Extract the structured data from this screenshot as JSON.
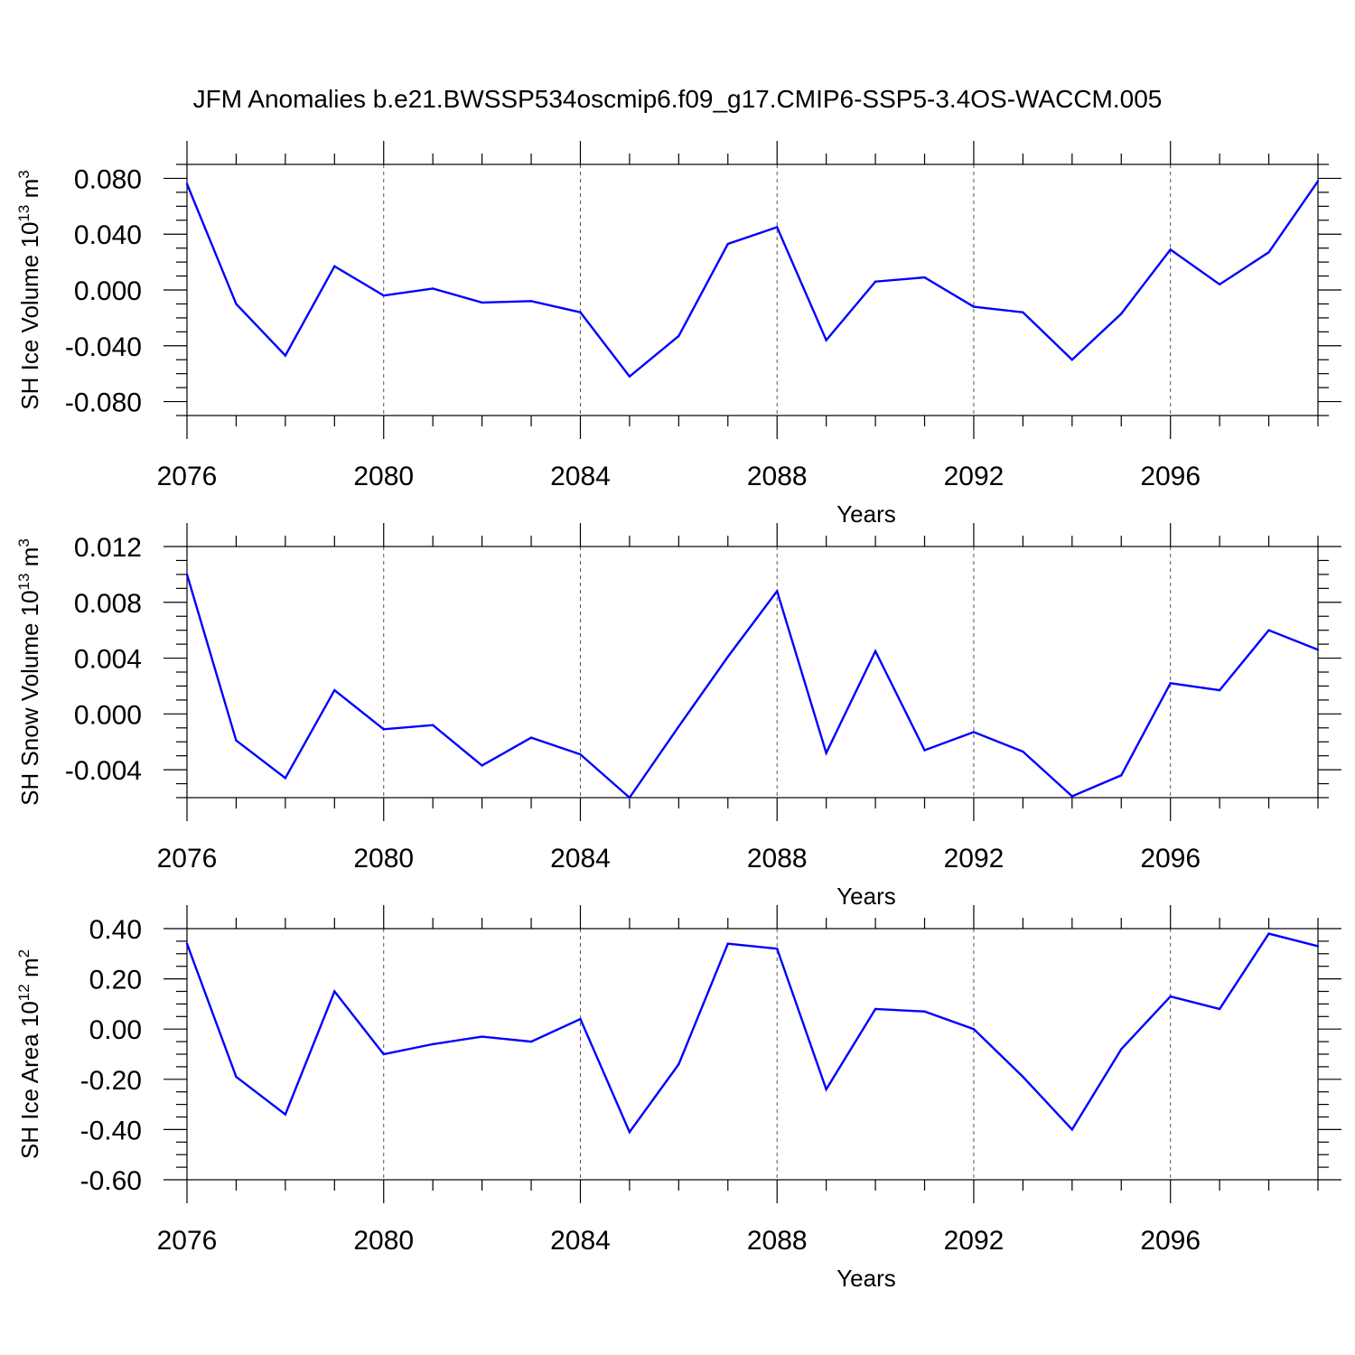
{
  "title": "JFM Anomalies b.e21.BWSSP534oscmip6.f09_g17.CMIP6-SSP5-3.4OS-WACCM.005",
  "chart_data": [
    {
      "type": "line",
      "xlabel": "Years",
      "ylabel": "SH Ice Volume 10",
      "ylabel_exp": "13",
      "ylabel_unit": " m",
      "ylabel_unit_exp": "3",
      "xlim": [
        2076,
        2099
      ],
      "ylim": [
        -0.09,
        0.09
      ],
      "xticks": [
        2076,
        2080,
        2084,
        2088,
        2092,
        2096
      ],
      "xtick_labels": [
        "2076",
        "2080",
        "2084",
        "2088",
        "2092",
        "2096"
      ],
      "yticks": [
        -0.08,
        -0.04,
        0.0,
        0.04,
        0.08
      ],
      "ytick_labels": [
        "-0.080",
        "-0.040",
        "0.000",
        "0.040",
        "0.080"
      ],
      "yminor_step": 0.01,
      "series": [
        {
          "name": "SH Ice Volume",
          "color": "#0000ff",
          "x": [
            2076,
            2077,
            2078,
            2079,
            2080,
            2081,
            2082,
            2083,
            2084,
            2085,
            2086,
            2087,
            2088,
            2089,
            2090,
            2091,
            2092,
            2093,
            2094,
            2095,
            2096,
            2097,
            2098,
            2099
          ],
          "y": [
            0.076,
            -0.01,
            -0.047,
            0.017,
            -0.004,
            0.001,
            -0.009,
            -0.008,
            -0.016,
            -0.062,
            -0.033,
            0.033,
            0.045,
            -0.036,
            0.006,
            0.009,
            -0.012,
            -0.016,
            -0.05,
            -0.017,
            0.029,
            0.004,
            0.027,
            0.078
          ]
        }
      ]
    },
    {
      "type": "line",
      "xlabel": "Years",
      "ylabel": "SH Snow Volume 10",
      "ylabel_exp": "13",
      "ylabel_unit": " m",
      "ylabel_unit_exp": "3",
      "xlim": [
        2076,
        2099
      ],
      "ylim": [
        -0.006,
        0.012
      ],
      "xticks": [
        2076,
        2080,
        2084,
        2088,
        2092,
        2096
      ],
      "xtick_labels": [
        "2076",
        "2080",
        "2084",
        "2088",
        "2092",
        "2096"
      ],
      "yticks": [
        -0.004,
        0.0,
        0.004,
        0.008,
        0.012
      ],
      "ytick_labels": [
        "-0.004",
        "0.000",
        "0.004",
        "0.008",
        "0.012"
      ],
      "yminor_step": 0.001,
      "series": [
        {
          "name": "SH Snow Volume",
          "color": "#0000ff",
          "x": [
            2076,
            2077,
            2078,
            2079,
            2080,
            2081,
            2082,
            2083,
            2084,
            2085,
            2086,
            2087,
            2088,
            2089,
            2090,
            2091,
            2092,
            2093,
            2094,
            2095,
            2096,
            2097,
            2098,
            2099
          ],
          "y": [
            0.01,
            -0.0019,
            -0.0046,
            0.0017,
            -0.0011,
            -0.0008,
            -0.0037,
            -0.0017,
            -0.0029,
            -0.006,
            -0.0009,
            0.0041,
            0.0088,
            -0.0028,
            0.0045,
            -0.0026,
            -0.0013,
            -0.0027,
            -0.0059,
            -0.0044,
            0.0022,
            0.0017,
            0.006,
            0.0046
          ]
        }
      ]
    },
    {
      "type": "line",
      "xlabel": "Years",
      "ylabel": "SH Ice Area 10",
      "ylabel_exp": "12",
      "ylabel_unit": " m",
      "ylabel_unit_exp": "2",
      "xlim": [
        2076,
        2099
      ],
      "ylim": [
        -0.6,
        0.4
      ],
      "xticks": [
        2076,
        2080,
        2084,
        2088,
        2092,
        2096
      ],
      "xtick_labels": [
        "2076",
        "2080",
        "2084",
        "2088",
        "2092",
        "2096"
      ],
      "yticks": [
        -0.6,
        -0.4,
        -0.2,
        0.0,
        0.2,
        0.4
      ],
      "ytick_labels": [
        "-0.60",
        "-0.40",
        "-0.20",
        "0.00",
        "0.20",
        "0.40"
      ],
      "yminor_step": 0.05,
      "series": [
        {
          "name": "SH Ice Area",
          "color": "#0000ff",
          "x": [
            2076,
            2077,
            2078,
            2079,
            2080,
            2081,
            2082,
            2083,
            2084,
            2085,
            2086,
            2087,
            2088,
            2089,
            2090,
            2091,
            2092,
            2093,
            2094,
            2095,
            2096,
            2097,
            2098,
            2099
          ],
          "y": [
            0.34,
            -0.19,
            -0.34,
            0.15,
            -0.1,
            -0.06,
            -0.03,
            -0.05,
            0.04,
            -0.41,
            -0.14,
            0.34,
            0.32,
            -0.24,
            0.08,
            0.07,
            0.0,
            -0.19,
            -0.4,
            -0.08,
            0.13,
            0.08,
            0.38,
            0.33
          ]
        }
      ]
    }
  ]
}
